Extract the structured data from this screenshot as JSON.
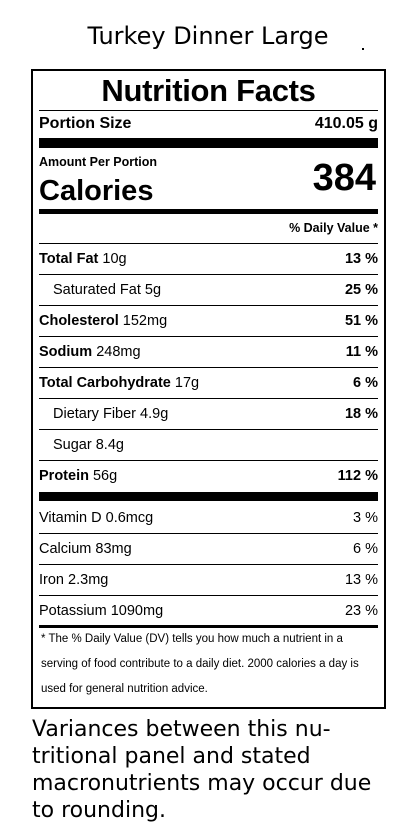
{
  "product_title": "Turkey Dinner Large",
  "label": {
    "heading": "Nutrition Facts",
    "portion_label": "Portion Size",
    "portion_value": "410.05 g",
    "amount_per": "Amount Per Portion",
    "calories_label": "Calories",
    "calories_value": "384",
    "dv_header": "% Daily Value *",
    "nutrients": [
      {
        "name": "Total Fat",
        "amount": "10g",
        "dv": "13 %"
      },
      {
        "name": "Saturated Fat",
        "amount": "5g",
        "dv": "25 %"
      },
      {
        "name": "Cholesterol",
        "amount": "152mg",
        "dv": "51 %"
      },
      {
        "name": "Sodium",
        "amount": "248mg",
        "dv": "11 %"
      },
      {
        "name": "Total Carbohydrate",
        "amount": "17g",
        "dv": "6 %"
      },
      {
        "name": "Dietary Fiber",
        "amount": "4.9g",
        "dv": "18 %"
      },
      {
        "name": "Sugar",
        "amount": "8.4g",
        "dv": ""
      },
      {
        "name": "Protein",
        "amount": "56g",
        "dv": "112 %"
      }
    ],
    "vitamins": [
      {
        "name": "Vitamin D",
        "amount": "0.6mcg",
        "dv": "3 %"
      },
      {
        "name": "Calcium",
        "amount": "83mg",
        "dv": "6 %"
      },
      {
        "name": "Iron",
        "amount": "2.3mg",
        "dv": "13 %"
      },
      {
        "name": "Potassium",
        "amount": "1090mg",
        "dv": "23 %"
      }
    ],
    "footnote": "* The % Daily Value (DV) tells you how much a nutrient in a serving of food contribute to a daily diet. 2000 calories a day is used for general nutrition advice."
  },
  "disclaimer": "Variances between this nu-tritional panel and stated macronutrients may occur due to rounding."
}
